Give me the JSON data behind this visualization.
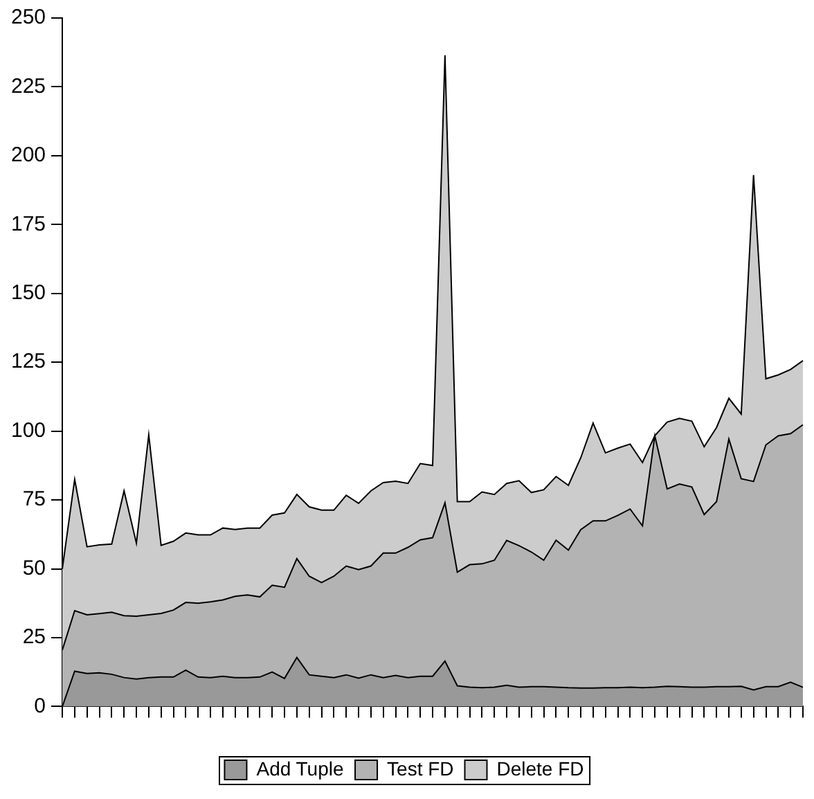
{
  "chart_data": {
    "type": "area",
    "stacked": true,
    "legend": "bottom",
    "grid": false,
    "marker": "none",
    "categories": [
      null,
      null,
      null,
      null,
      null,
      null,
      null,
      null,
      null,
      null,
      null,
      null,
      null,
      null,
      null,
      null,
      null,
      null,
      null,
      null,
      null,
      null,
      null,
      null,
      null,
      null,
      null,
      null,
      null,
      null,
      null,
      null,
      null,
      null,
      null,
      null,
      null,
      null,
      null,
      null,
      null,
      null,
      null,
      null,
      null,
      null,
      null,
      null,
      null,
      null,
      null,
      null,
      null,
      null,
      null,
      null,
      null,
      null,
      null,
      null,
      null
    ],
    "ylim": [
      0,
      250
    ],
    "yticks": [
      0,
      25,
      50,
      75,
      100,
      125,
      150,
      175,
      200,
      225,
      250
    ],
    "series": [
      {
        "name": "Add Tuple",
        "color": "#999999",
        "values": [
          0,
          12.8,
          12,
          12.2,
          11.7,
          10.5,
          10,
          10.5,
          10.7,
          10.7,
          13.2,
          10.7,
          10.5,
          11,
          10.5,
          10.5,
          10.7,
          12.5,
          10.2,
          17.8,
          11.5,
          11,
          10.5,
          11.5,
          10.3,
          11.5,
          10.5,
          11.3,
          10.5,
          11,
          11,
          16.5,
          7.5,
          7,
          6.8,
          7,
          7.7,
          7,
          7.2,
          7.2,
          7,
          6.8,
          6.7,
          6.7,
          6.8,
          6.8,
          7,
          6.8,
          7,
          7.3,
          7.2,
          7,
          7,
          7.2,
          7.2,
          7.3,
          6,
          7.2,
          7.2,
          8.8,
          7
        ]
      },
      {
        "name": "Test FD",
        "color": "#b3b3b3",
        "values": [
          20.5,
          22,
          21.3,
          21.5,
          22.5,
          22.5,
          22.8,
          22.8,
          23.1,
          24.3,
          24.6,
          26.8,
          27.5,
          27.7,
          29.5,
          30,
          29.1,
          31.5,
          33.1,
          35.9,
          35.8,
          34,
          36.8,
          39.5,
          39.4,
          39.5,
          45.2,
          44.4,
          47.3,
          49.5,
          50.3,
          57.5,
          41.3,
          44.5,
          45,
          46.1,
          52.6,
          51.4,
          48.9,
          45.9,
          53.4,
          50,
          57.5,
          60.7,
          60.6,
          62.6,
          64.7,
          58.8,
          91.3,
          71.7,
          73.6,
          72.7,
          62.7,
          67.2,
          89.9,
          75.4,
          75.7,
          87.8,
          91.1,
          90.3,
          95.3
        ]
      },
      {
        "name": "Delete FD",
        "color": "#cccccc",
        "values": [
          29.5,
          47.7,
          24.7,
          25,
          24.8,
          45.3,
          26.5,
          65.4,
          24.7,
          25,
          25.2,
          24.8,
          24.3,
          26.1,
          24.3,
          24.3,
          25,
          25.5,
          27,
          23.3,
          25.2,
          26.3,
          24,
          25.7,
          24.1,
          27.3,
          25.6,
          26.1,
          23.2,
          27.7,
          26.2,
          162.5,
          25.6,
          22.9,
          26.1,
          23.9,
          20.7,
          23.6,
          21.6,
          25.6,
          23.1,
          23.5,
          26.1,
          35.5,
          24.7,
          24.4,
          23.6,
          23,
          0,
          24.3,
          23.8,
          23.9,
          24.6,
          26.9,
          14.8,
          23.5,
          111.3,
          24,
          22.1,
          23.3,
          23.3
        ]
      }
    ]
  }
}
